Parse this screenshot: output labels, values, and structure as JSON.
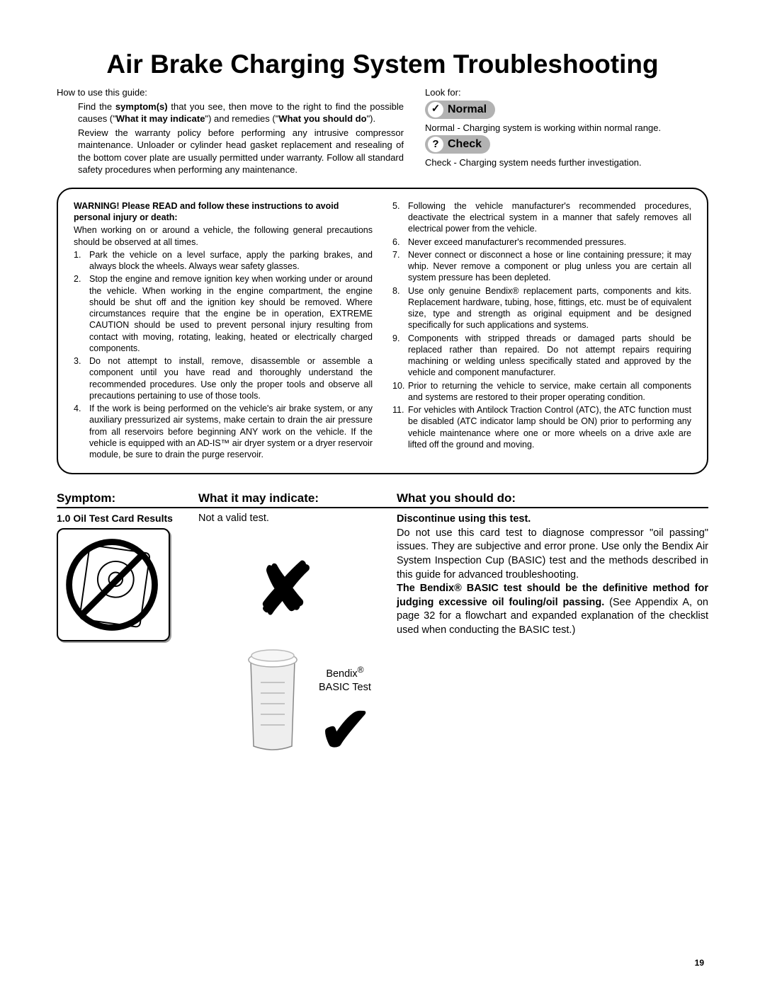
{
  "title": "Air Brake Charging System Troubleshooting",
  "intro": {
    "howto": "How to use this guide:",
    "p1a": "Find the ",
    "p1b": "symptom(s)",
    "p1c": " that you see, then move to the right to find the possible causes (\"",
    "p1d": "What it may indicate",
    "p1e": "\") and remedies (\"",
    "p1f": "What you should do",
    "p1g": "\").",
    "p2": "Review the warranty policy before performing any intrusive compressor maintenance.  Unloader or cylinder head gasket replacement and resealing of the bottom cover plate are usually permitted under warranty.  Follow all standard safety procedures when performing any maintenance."
  },
  "look": {
    "label": "Look for:",
    "normal_badge": "Normal",
    "normal_icon": "✓",
    "normal_text": "Normal - Charging system is working within normal range.",
    "check_badge": "Check",
    "check_icon": "?",
    "check_text": "Check - Charging system needs further investigation."
  },
  "warn": {
    "header": "WARNING! Please READ and follow these instructions to avoid personal injury or death:",
    "pre": "When working on or around a vehicle, the following general precautions should be observed at all times.",
    "items": [
      "Park the vehicle on a level surface, apply the parking brakes, and always block the wheels.  Always wear safety glasses.",
      "Stop the engine and remove ignition key when working under or around the vehicle.  When working in the engine compartment, the engine should be shut off and the ignition key should be removed. Where circumstances require that the engine be in operation, EXTREME CAUTION should be used to prevent personal injury resulting from contact with moving, rotating, leaking, heated or electrically charged components.",
      "Do not attempt to install, remove, disassemble or assemble a component until you have read and thoroughly understand the recommended procedures.  Use only the proper tools and observe all precautions pertaining to use of those tools.",
      "If the work is being performed on the vehicle's air brake system, or any auxiliary pressurized air systems, make certain to drain the air pressure from all reservoirs before beginning ANY work on the vehicle.  If the vehicle is equipped with an AD-IS™ air dryer system or a dryer reservoir module, be sure to drain the purge reservoir.",
      "Following the vehicle manufacturer's recommended procedures, deactivate the electrical system in a manner that safely removes all electrical power from the vehicle.",
      "Never exceed manufacturer's recommended pressures.",
      "Never connect or disconnect a hose or line containing pressure; it may whip. Never remove a component or plug unless you are certain all system pressure has been depleted.",
      "Use only genuine Bendix® replacement parts, components and kits. Replacement hardware, tubing, hose, fittings, etc. must be of equivalent size, type and strength as original equipment and be designed specifically for such applications and systems.",
      "Components with stripped threads or damaged parts should be replaced rather than repaired.  Do not attempt repairs requiring machining or welding unless specifically stated and approved by the vehicle and component manufacturer.",
      "Prior to returning the vehicle to service, make certain all components and systems are restored to their proper operating condition.",
      "For vehicles with Antilock Traction Control (ATC), the ATC function must be disabled (ATC indicator lamp should be ON) prior to performing any vehicle maintenance where one or more wheels on a drive axle are lifted off the ground and moving."
    ]
  },
  "thead": {
    "s": "Symptom:",
    "i": "What it may indicate:",
    "d": "What you should do:"
  },
  "row1": {
    "symptom": "1.0  Oil Test Card Results",
    "indicate": "Not a valid test.",
    "do_b1": "Discontinue using this test.",
    "do_p1": "Do not use this card test to diagnose compressor \"oil passing\" issues. They are subjective and error prone. Use only the Bendix Air System Inspection Cup (BASIC) test and the methods described in this guide for advanced troubleshooting.",
    "do_b2": "The Bendix® BASIC test should be the definitive method for judging excessive oil fouling/oil passing.",
    "do_p2": "  (See Appendix A, on page 32 for a flowchart and expanded explanation of the checklist used when conducting the BASIC test.)",
    "bendix_label": "Bendix®\nBASIC Test",
    "x": "✘",
    "check": "✔"
  },
  "pagenum": "19"
}
